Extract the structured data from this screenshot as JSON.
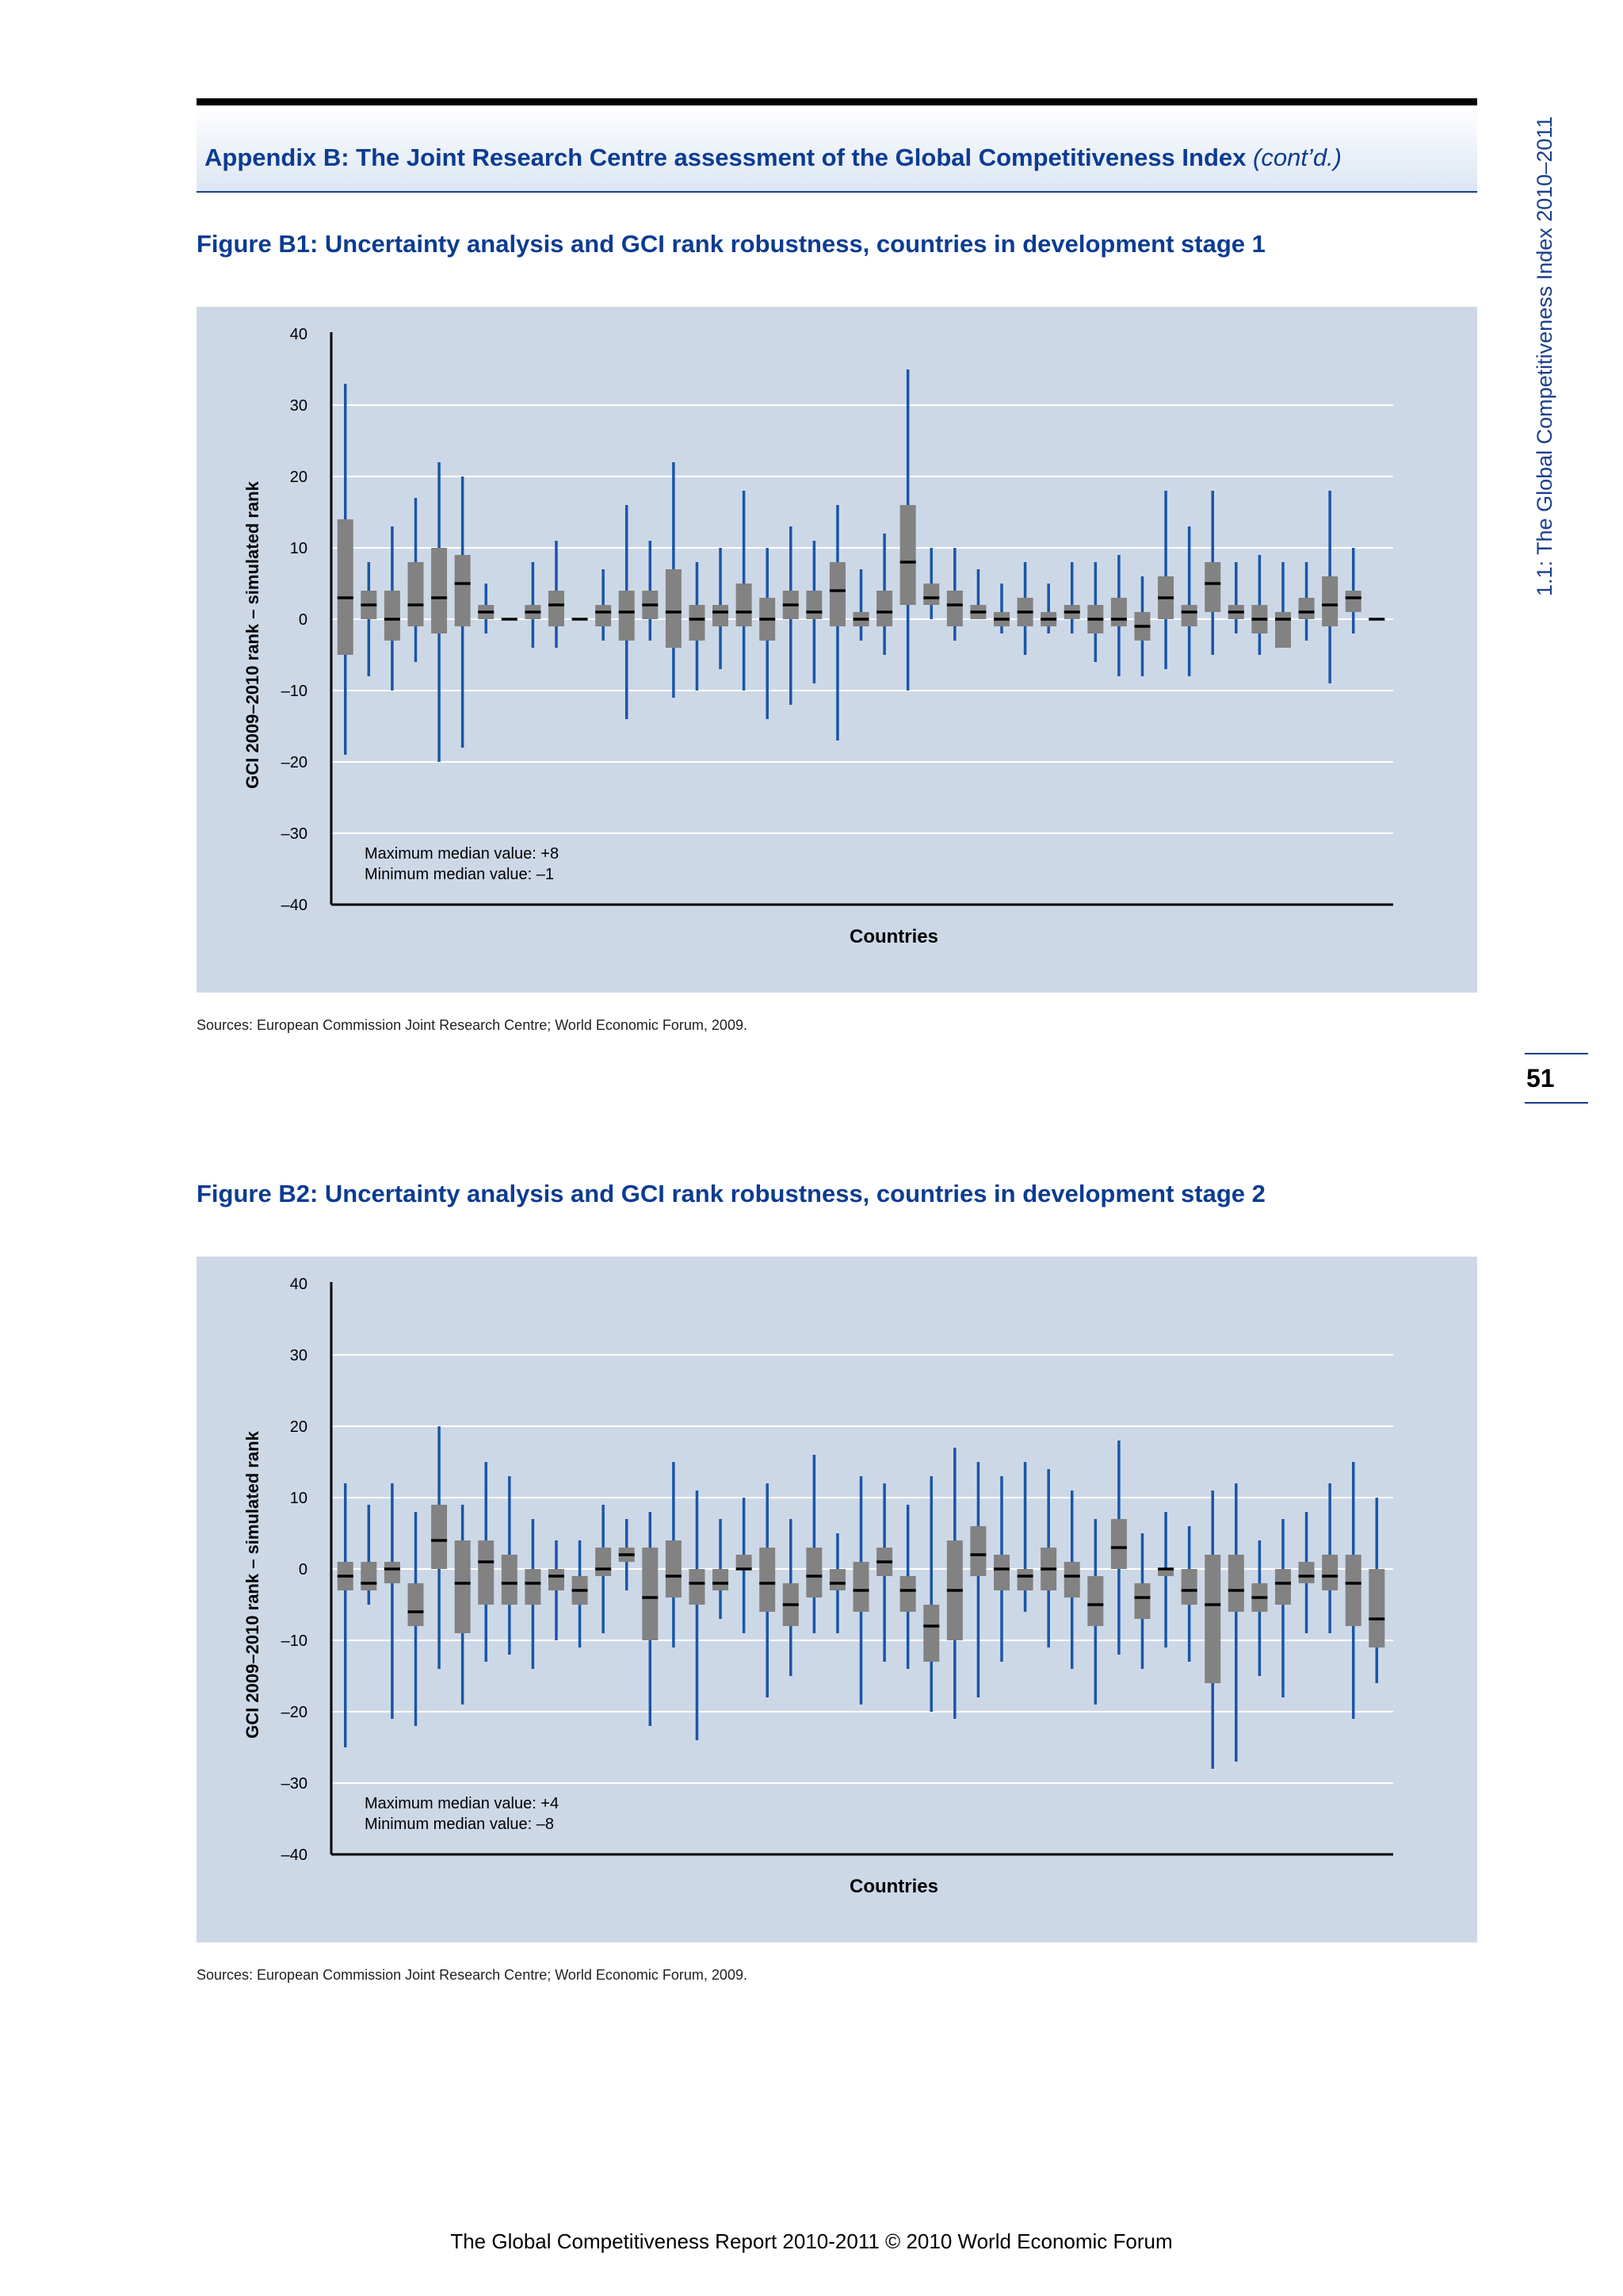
{
  "header": {
    "appendix_title": "Appendix B: The Joint Research Centre assessment of the Global Competitiveness Index",
    "appendix_suffix": "(cont’d.)"
  },
  "sidebar": {
    "running_title": "1.1: The Global Competitiveness Index 2010–2011",
    "page_number": "51"
  },
  "footer": "The Global Competitiveness Report 2010-2011 © 2010 World Economic Forum",
  "colors": {
    "panel_bg": "#cdd8e7",
    "box": "#828282",
    "whisker": "#1a56a8",
    "title": "#0c3c92"
  },
  "figures": [
    {
      "title": "Figure B1: Uncertainty analysis and GCI rank robustness, countries in development stage 1",
      "source": "Sources: European Commission Joint Research Centre; World Economic Forum, 2009.",
      "annotation_max": "Maximum median value: +8",
      "annotation_min": "Minimum median value: –1"
    },
    {
      "title": "Figure B2: Uncertainty analysis and GCI rank robustness, countries in development stage 2",
      "source": "Sources: European Commission Joint Research Centre; World Economic Forum, 2009.",
      "annotation_max": "Maximum median value: +4",
      "annotation_min": "Minimum median value: –8"
    }
  ],
  "chart_data": [
    {
      "type": "box",
      "xlabel": "Countries",
      "ylabel": "GCI 2009–2010 rank – simulated rank",
      "ylim": [
        -40,
        40
      ],
      "yticks": [
        "40",
        "30",
        "20",
        "10",
        "0",
        "–10",
        "–20",
        "–30",
        "–40"
      ],
      "grid": true,
      "boxes": [
        {
          "min": -19,
          "q1": -5,
          "median": 3,
          "q3": 14,
          "max": 33
        },
        {
          "min": -8,
          "q1": 0,
          "median": 2,
          "q3": 4,
          "max": 8
        },
        {
          "min": -10,
          "q1": -3,
          "median": 0,
          "q3": 4,
          "max": 13
        },
        {
          "min": -6,
          "q1": -1,
          "median": 2,
          "q3": 8,
          "max": 17
        },
        {
          "min": -20,
          "q1": -2,
          "median": 3,
          "q3": 10,
          "max": 22
        },
        {
          "min": -18,
          "q1": -1,
          "median": 5,
          "q3": 9,
          "max": 20
        },
        {
          "min": -2,
          "q1": 0,
          "median": 1,
          "q3": 2,
          "max": 5
        },
        {
          "min": 0,
          "q1": 0,
          "median": 0,
          "q3": 0,
          "max": 0
        },
        {
          "min": -4,
          "q1": 0,
          "median": 1,
          "q3": 2,
          "max": 8
        },
        {
          "min": -4,
          "q1": -1,
          "median": 2,
          "q3": 4,
          "max": 11
        },
        {
          "min": 0,
          "q1": 0,
          "median": 0,
          "q3": 0,
          "max": 0
        },
        {
          "min": -3,
          "q1": -1,
          "median": 1,
          "q3": 2,
          "max": 7
        },
        {
          "min": -14,
          "q1": -3,
          "median": 1,
          "q3": 4,
          "max": 16
        },
        {
          "min": -3,
          "q1": 0,
          "median": 2,
          "q3": 4,
          "max": 11
        },
        {
          "min": -11,
          "q1": -4,
          "median": 1,
          "q3": 7,
          "max": 22
        },
        {
          "min": -10,
          "q1": -3,
          "median": 0,
          "q3": 2,
          "max": 8
        },
        {
          "min": -7,
          "q1": -1,
          "median": 1,
          "q3": 2,
          "max": 10
        },
        {
          "min": -10,
          "q1": -1,
          "median": 1,
          "q3": 5,
          "max": 18
        },
        {
          "min": -14,
          "q1": -3,
          "median": 0,
          "q3": 3,
          "max": 10
        },
        {
          "min": -12,
          "q1": 0,
          "median": 2,
          "q3": 4,
          "max": 13
        },
        {
          "min": -9,
          "q1": 0,
          "median": 1,
          "q3": 4,
          "max": 11
        },
        {
          "min": -17,
          "q1": -1,
          "median": 4,
          "q3": 8,
          "max": 16
        },
        {
          "min": -3,
          "q1": -1,
          "median": 0,
          "q3": 1,
          "max": 7
        },
        {
          "min": -5,
          "q1": -1,
          "median": 1,
          "q3": 4,
          "max": 12
        },
        {
          "min": -10,
          "q1": 2,
          "median": 8,
          "q3": 16,
          "max": 35
        },
        {
          "min": 0,
          "q1": 2,
          "median": 3,
          "q3": 5,
          "max": 10
        },
        {
          "min": -3,
          "q1": -1,
          "median": 2,
          "q3": 4,
          "max": 10
        },
        {
          "min": 0,
          "q1": 0,
          "median": 1,
          "q3": 2,
          "max": 7
        },
        {
          "min": -2,
          "q1": -1,
          "median": 0,
          "q3": 1,
          "max": 5
        },
        {
          "min": -5,
          "q1": -1,
          "median": 1,
          "q3": 3,
          "max": 8
        },
        {
          "min": -2,
          "q1": -1,
          "median": 0,
          "q3": 1,
          "max": 5
        },
        {
          "min": -2,
          "q1": 0,
          "median": 1,
          "q3": 2,
          "max": 8
        },
        {
          "min": -6,
          "q1": -2,
          "median": 0,
          "q3": 2,
          "max": 8
        },
        {
          "min": -8,
          "q1": -1,
          "median": 0,
          "q3": 3,
          "max": 9
        },
        {
          "min": -8,
          "q1": -3,
          "median": -1,
          "q3": 1,
          "max": 6
        },
        {
          "min": -7,
          "q1": 0,
          "median": 3,
          "q3": 6,
          "max": 18
        },
        {
          "min": -8,
          "q1": -1,
          "median": 1,
          "q3": 2,
          "max": 13
        },
        {
          "min": -5,
          "q1": 1,
          "median": 5,
          "q3": 8,
          "max": 18
        },
        {
          "min": -2,
          "q1": 0,
          "median": 1,
          "q3": 2,
          "max": 8
        },
        {
          "min": -5,
          "q1": -2,
          "median": 0,
          "q3": 2,
          "max": 9
        },
        {
          "min": -4,
          "q1": -4,
          "median": 0,
          "q3": 1,
          "max": 8
        },
        {
          "min": -3,
          "q1": 0,
          "median": 1,
          "q3": 3,
          "max": 8
        },
        {
          "min": -9,
          "q1": -1,
          "median": 2,
          "q3": 6,
          "max": 18
        },
        {
          "min": -2,
          "q1": 1,
          "median": 3,
          "q3": 4,
          "max": 10
        },
        {
          "min": 0,
          "q1": 0,
          "median": 0,
          "q3": 0,
          "max": 0
        }
      ]
    },
    {
      "type": "box",
      "xlabel": "Countries",
      "ylabel": "GCI 2009–2010 rank – simulated rank",
      "ylim": [
        -40,
        40
      ],
      "yticks": [
        "40",
        "30",
        "20",
        "10",
        "0",
        "–10",
        "–20",
        "–30",
        "–40"
      ],
      "grid": true,
      "boxes": [
        {
          "min": -25,
          "q1": -3,
          "median": -1,
          "q3": 1,
          "max": 12
        },
        {
          "min": -5,
          "q1": -3,
          "median": -2,
          "q3": 1,
          "max": 9
        },
        {
          "min": -21,
          "q1": -2,
          "median": 0,
          "q3": 1,
          "max": 12
        },
        {
          "min": -22,
          "q1": -8,
          "median": -6,
          "q3": -2,
          "max": 8
        },
        {
          "min": -14,
          "q1": 0,
          "median": 4,
          "q3": 9,
          "max": 20
        },
        {
          "min": -19,
          "q1": -9,
          "median": -2,
          "q3": 4,
          "max": 9
        },
        {
          "min": -13,
          "q1": -5,
          "median": 1,
          "q3": 4,
          "max": 15
        },
        {
          "min": -12,
          "q1": -5,
          "median": -2,
          "q3": 2,
          "max": 13
        },
        {
          "min": -14,
          "q1": -5,
          "median": -2,
          "q3": 0,
          "max": 7
        },
        {
          "min": -10,
          "q1": -3,
          "median": -1,
          "q3": 0,
          "max": 4
        },
        {
          "min": -11,
          "q1": -5,
          "median": -3,
          "q3": -1,
          "max": 4
        },
        {
          "min": -9,
          "q1": -1,
          "median": 0,
          "q3": 3,
          "max": 9
        },
        {
          "min": -3,
          "q1": 1,
          "median": 2,
          "q3": 3,
          "max": 7
        },
        {
          "min": -22,
          "q1": -10,
          "median": -4,
          "q3": 3,
          "max": 8
        },
        {
          "min": -11,
          "q1": -4,
          "median": -1,
          "q3": 4,
          "max": 15
        },
        {
          "min": -24,
          "q1": -5,
          "median": -2,
          "q3": 0,
          "max": 11
        },
        {
          "min": -7,
          "q1": -3,
          "median": -2,
          "q3": 0,
          "max": 7
        },
        {
          "min": -9,
          "q1": 0,
          "median": 0,
          "q3": 2,
          "max": 10
        },
        {
          "min": -18,
          "q1": -6,
          "median": -2,
          "q3": 3,
          "max": 12
        },
        {
          "min": -15,
          "q1": -8,
          "median": -5,
          "q3": -2,
          "max": 7
        },
        {
          "min": -9,
          "q1": -4,
          "median": -1,
          "q3": 3,
          "max": 16
        },
        {
          "min": -9,
          "q1": -3,
          "median": -2,
          "q3": 0,
          "max": 5
        },
        {
          "min": -19,
          "q1": -6,
          "median": -3,
          "q3": 1,
          "max": 13
        },
        {
          "min": -13,
          "q1": -1,
          "median": 1,
          "q3": 3,
          "max": 12
        },
        {
          "min": -14,
          "q1": -6,
          "median": -3,
          "q3": -1,
          "max": 9
        },
        {
          "min": -20,
          "q1": -13,
          "median": -8,
          "q3": -5,
          "max": 13
        },
        {
          "min": -21,
          "q1": -10,
          "median": -3,
          "q3": 4,
          "max": 17
        },
        {
          "min": -18,
          "q1": -1,
          "median": 2,
          "q3": 6,
          "max": 15
        },
        {
          "min": -13,
          "q1": -3,
          "median": 0,
          "q3": 2,
          "max": 13
        },
        {
          "min": -6,
          "q1": -3,
          "median": -1,
          "q3": 0,
          "max": 15
        },
        {
          "min": -11,
          "q1": -3,
          "median": 0,
          "q3": 3,
          "max": 14
        },
        {
          "min": -14,
          "q1": -4,
          "median": -1,
          "q3": 1,
          "max": 11
        },
        {
          "min": -19,
          "q1": -8,
          "median": -5,
          "q3": -1,
          "max": 7
        },
        {
          "min": -12,
          "q1": 0,
          "median": 3,
          "q3": 7,
          "max": 18
        },
        {
          "min": -14,
          "q1": -7,
          "median": -4,
          "q3": -2,
          "max": 5
        },
        {
          "min": -11,
          "q1": -1,
          "median": 0,
          "q3": 0,
          "max": 8
        },
        {
          "min": -13,
          "q1": -5,
          "median": -3,
          "q3": 0,
          "max": 6
        },
        {
          "min": -28,
          "q1": -16,
          "median": -5,
          "q3": 2,
          "max": 11
        },
        {
          "min": -27,
          "q1": -6,
          "median": -3,
          "q3": 2,
          "max": 12
        },
        {
          "min": -15,
          "q1": -6,
          "median": -4,
          "q3": -2,
          "max": 4
        },
        {
          "min": -18,
          "q1": -5,
          "median": -2,
          "q3": 0,
          "max": 7
        },
        {
          "min": -9,
          "q1": -2,
          "median": -1,
          "q3": 1,
          "max": 8
        },
        {
          "min": -9,
          "q1": -3,
          "median": -1,
          "q3": 2,
          "max": 12
        },
        {
          "min": -21,
          "q1": -8,
          "median": -2,
          "q3": 2,
          "max": 15
        },
        {
          "min": -16,
          "q1": -11,
          "median": -7,
          "q3": 0,
          "max": 10
        }
      ]
    }
  ]
}
